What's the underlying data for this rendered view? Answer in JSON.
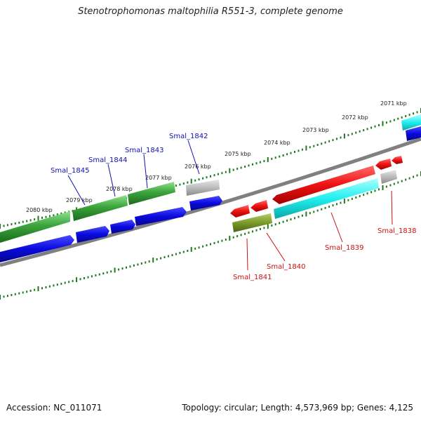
{
  "title": "Stenotrophomonas maltophilia R551-3, complete genome",
  "footer": {
    "accession": "Accession: NC_011071",
    "summary": "Topology: circular; Length: 4,573,969 bp; Genes: 4,125"
  },
  "colors": {
    "tick": "#1f7a1f",
    "backbone": "#808080",
    "label_above": "#1010b0",
    "label_below": "#cc1111",
    "green": "#3ca43c",
    "dark_green": "#2a7d2a",
    "blue": "#0a0adf",
    "gray": "#b8b8b8",
    "red": "#ee1111",
    "cyan": "#11eeee",
    "olive": "#7a9a2a"
  },
  "kbp_ticks": [
    "2071 kbp",
    "2072 kbp",
    "2073 kbp",
    "2074 kbp",
    "2075 kbp",
    "2076 kbp",
    "2077 kbp",
    "2078 kbp",
    "2079 kbp",
    "2080 kbp"
  ],
  "gene_labels": [
    "Smal_1845",
    "Smal_1844",
    "Smal_1843",
    "Smal_1842",
    "Smal_1841",
    "Smal_1840",
    "Smal_1839",
    "Smal_1838"
  ]
}
